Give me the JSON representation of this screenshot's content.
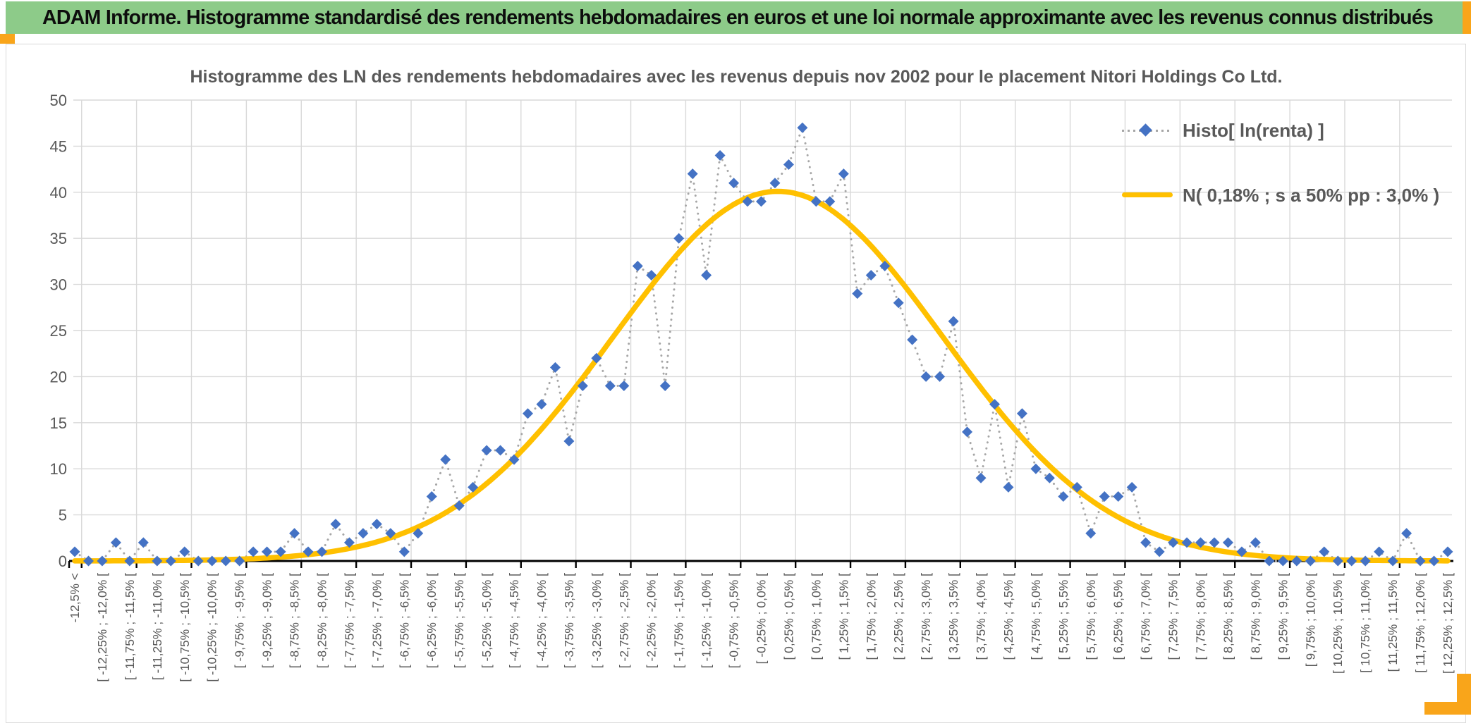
{
  "window": {
    "title_bar": "ADAM Informe. Histogramme standardisé des rendements hebdomadaires en euros et une loi normale approximante avec les revenus connus distribués",
    "title_bar_color": "#8DCB89",
    "accent_color": "#F9A51A"
  },
  "chart_data": {
    "type": "line",
    "title": "Histogramme des LN des rendements hebdomadaires avec les revenus depuis nov 2002 pour le placement Nitori Holdings Co Ltd.",
    "ylim": [
      0,
      50
    ],
    "ytick_step": 5,
    "grid": true,
    "legend_position": "right-top",
    "x_axis": {
      "label_interval": 2,
      "tick_interval": 4,
      "bin_width_pct": 0.25,
      "first_bin": "-12,5% <"
    },
    "categories": [
      "-12,5% <",
      "",
      "[ -12,25% ; -12,0% [",
      "",
      "[ -11,75% ; -11,5% [",
      "",
      "[ -11,25% ; -11,0% [",
      "",
      "[ -10,75% ; -10,5% [",
      "",
      "[ -10,25% ; -10,0% [",
      "",
      "[ -9,75% ; -9,5% [",
      "",
      "[ -9,25% ; -9,0% [",
      "",
      "[ -8,75% ; -8,5% [",
      "",
      "[ -8,25% ; -8,0% [",
      "",
      "[ -7,75% ; -7,5% [",
      "",
      "[ -7,25% ; -7,0% [",
      "",
      "[ -6,75% ; -6,5% [",
      "",
      "[ -6,25% ; -6,0% [",
      "",
      "[ -5,75% ; -5,5% [",
      "",
      "[ -5,25% ; -5,0% [",
      "",
      "[ -4,75% ; -4,5% [",
      "",
      "[ -4,25% ; -4,0% [",
      "",
      "[ -3,75% ; -3,5% [",
      "",
      "[ -3,25% ; -3,0% [",
      "",
      "[ -2,75% ; -2,5% [",
      "",
      "[ -2,25% ; -2,0% [",
      "",
      "[ -1,75% ; -1,5% [",
      "",
      "[ -1,25% ; -1,0% [",
      "",
      "[ -0,75% ; -0,5% [",
      "",
      "[ -0,25% ; 0,0% [",
      "",
      "[ 0,25% ; 0,5% [",
      "",
      "[ 0,75% ; 1,0% [",
      "",
      "[ 1,25% ; 1,5% [",
      "",
      "[ 1,75% ; 2,0% [",
      "",
      "[ 2,25% ; 2,5% [",
      "",
      "[ 2,75% ; 3,0% [",
      "",
      "[ 3,25% ; 3,5% [",
      "",
      "[ 3,75% ; 4,0% [",
      "",
      "[ 4,25% ; 4,5% [",
      "",
      "[ 4,75% ; 5,0% [",
      "",
      "[ 5,25% ; 5,5% [",
      "",
      "[ 5,75% ; 6,0% [",
      "",
      "[ 6,25% ; 6,5% [",
      "",
      "[ 6,75% ; 7,0% [",
      "",
      "[ 7,25% ; 7,5% [",
      "",
      "[ 7,75% ; 8,0% [",
      "",
      "[ 8,25% ; 8,5% [",
      "",
      "[ 8,75% ; 9,0% [",
      "",
      "[ 9,25% ; 9,5% [",
      "",
      "[ 9,75% ; 10,0% [",
      "",
      "[ 10,25% ; 10,5% [",
      "",
      "[ 10,75% ; 11,0% [",
      "",
      "[ 11,25% ; 11,5% [",
      "",
      "[ 11,75% ; 12,0% [",
      "",
      "[ 12,25% ; 12,5% ["
    ],
    "series": [
      {
        "name": "Histo[ ln(renta) ]",
        "kind": "markers_dotted",
        "marker": "diamond",
        "marker_color": "#4472C4",
        "line_color": "#A6A6A6",
        "values": [
          1,
          0,
          0,
          2,
          0,
          2,
          0,
          0,
          1,
          0,
          0,
          0,
          0,
          1,
          1,
          1,
          3,
          1,
          1,
          4,
          2,
          3,
          4,
          3,
          1,
          3,
          7,
          11,
          6,
          8,
          12,
          12,
          11,
          16,
          17,
          21,
          13,
          19,
          22,
          19,
          19,
          32,
          31,
          19,
          35,
          42,
          31,
          44,
          41,
          39,
          39,
          41,
          43,
          47,
          39,
          39,
          42,
          29,
          31,
          32,
          28,
          24,
          20,
          20,
          26,
          14,
          9,
          17,
          8,
          16,
          10,
          9,
          7,
          8,
          3,
          7,
          7,
          8,
          2,
          1,
          2,
          2,
          2,
          2,
          2,
          1,
          2,
          0,
          0,
          0,
          0,
          1,
          0,
          0,
          0,
          1,
          0,
          3,
          0,
          0,
          1
        ]
      },
      {
        "name": "N( 0,18% ; s a 50% pp : 3,0% )",
        "kind": "normal_curve",
        "color": "#FFC000",
        "mean_pct": 0.18,
        "sd_pct": 3.0,
        "peak_height": 40.1
      }
    ]
  },
  "legend": {
    "items": [
      {
        "label": "Histo[ ln(renta) ]"
      },
      {
        "label": "N( 0,18% ; s a 50% pp : 3,0% )"
      }
    ]
  },
  "axis_style": {
    "label_color": "#595959",
    "grid_color": "#D9D9D9",
    "axis_color": "#000000"
  }
}
